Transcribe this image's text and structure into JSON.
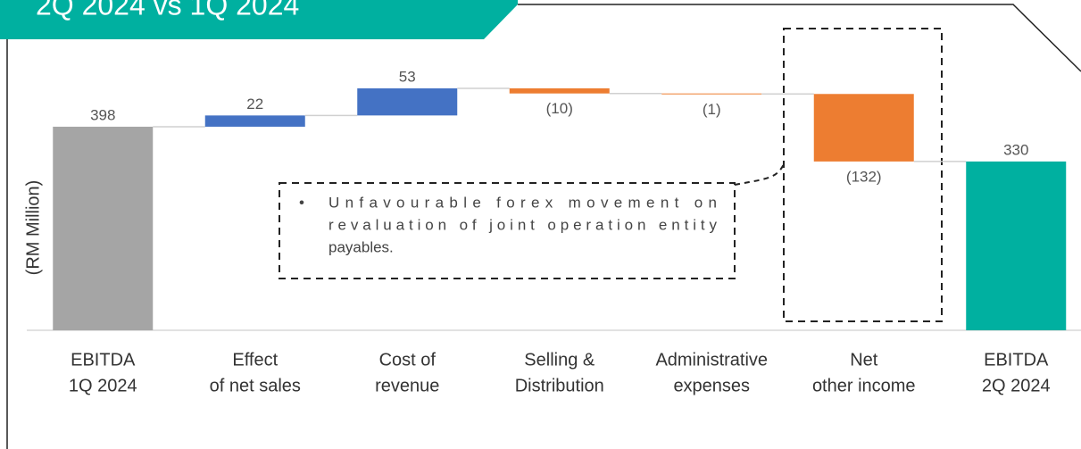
{
  "chart_data": {
    "type": "waterfall",
    "title": "2Q 2024 vs 1Q 2024",
    "y_label": "(RM Million)",
    "categories": [
      [
        "EBITDA",
        "1Q 2024"
      ],
      [
        "Effect",
        "of net sales"
      ],
      [
        "Cost of",
        "revenue"
      ],
      [
        "Selling &",
        "Distribution"
      ],
      [
        "Administrative",
        "expenses"
      ],
      [
        "Net",
        "other income"
      ],
      [
        "EBITDA",
        "2Q 2024"
      ]
    ],
    "values": [
      398,
      22,
      53,
      -10,
      -1,
      -132,
      330
    ],
    "value_labels": [
      "398",
      "22",
      "53",
      "(10)",
      "(1)",
      "(132)",
      "330"
    ],
    "measures": [
      "total",
      "relative",
      "relative",
      "relative",
      "relative",
      "relative",
      "total"
    ],
    "colors": {
      "first_total": "#a5a5a5",
      "increase": "#4472c4",
      "decrease": "#ed7d31",
      "last_total": "#00b0a0"
    },
    "ylim": [
      0,
      500
    ],
    "annotation": {
      "bullet": "•",
      "lines": [
        "Unfavourable forex movement on",
        "revaluation of joint operation entity",
        "payables."
      ]
    }
  }
}
